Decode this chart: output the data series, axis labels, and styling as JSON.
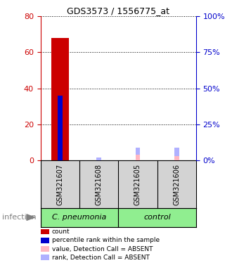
{
  "title": "GDS3573 / 1556775_at",
  "samples": [
    "GSM321607",
    "GSM321608",
    "GSM321605",
    "GSM321606"
  ],
  "count_values": [
    68,
    0,
    0,
    0
  ],
  "percentile_values": [
    45,
    0,
    0,
    0
  ],
  "absent_value_values": [
    0,
    0,
    4,
    3
  ],
  "absent_rank_values": [
    0,
    2,
    5,
    6
  ],
  "ylim_left": [
    0,
    80
  ],
  "ylim_right": [
    0,
    100
  ],
  "yticks_left": [
    0,
    20,
    40,
    60,
    80
  ],
  "yticks_right": [
    0,
    25,
    50,
    75,
    100
  ],
  "ytick_labels_left": [
    "0",
    "20",
    "40",
    "60",
    "80"
  ],
  "ytick_labels_right": [
    "0%",
    "25%",
    "50%",
    "75%",
    "100%"
  ],
  "left_axis_color": "#CC0000",
  "right_axis_color": "#0000CC",
  "count_color": "#CC0000",
  "percentile_color": "#0000CC",
  "absent_value_color": "#FFB6C1",
  "absent_rank_color": "#B0B0FF",
  "infection_label": "infection",
  "group_spans": [
    [
      "C. pneumonia",
      0,
      2
    ],
    [
      "control",
      2,
      4
    ]
  ],
  "group_color": "#90EE90",
  "sample_box_color": "#D3D3D3",
  "legend_items": [
    {
      "label": "count",
      "color": "#CC0000"
    },
    {
      "label": "percentile rank within the sample",
      "color": "#0000CC"
    },
    {
      "label": "value, Detection Call = ABSENT",
      "color": "#FFB6C1"
    },
    {
      "label": "rank, Detection Call = ABSENT",
      "color": "#B0B0FF"
    }
  ],
  "title_fontsize": 9,
  "tick_label_fontsize": 8,
  "sample_label_fontsize": 7,
  "group_label_fontsize": 8
}
